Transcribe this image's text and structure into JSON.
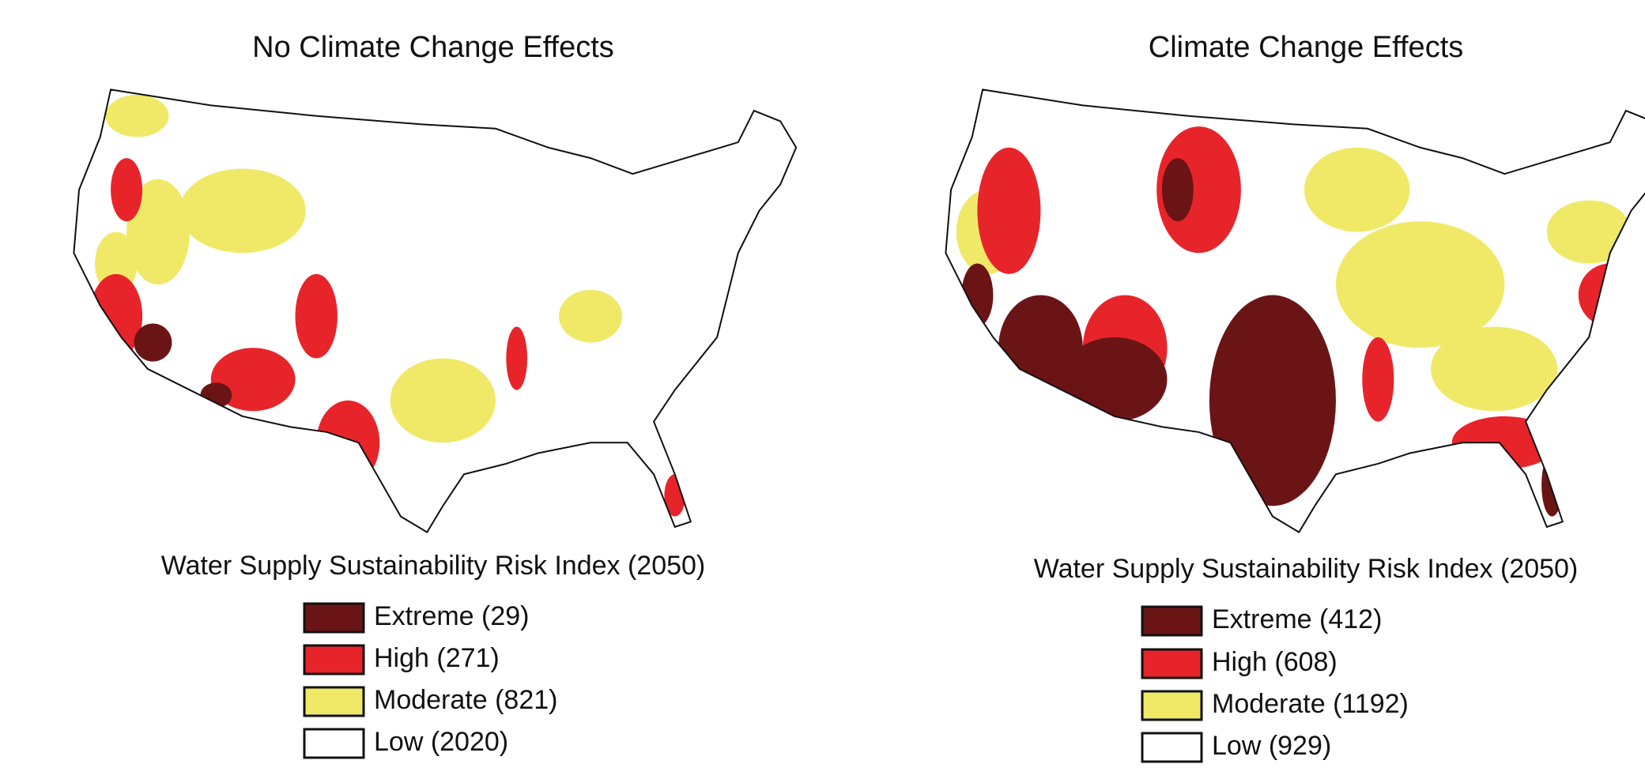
{
  "maps": [
    {
      "title": "No Climate Change Effects",
      "legend": {
        "title": "Water Supply Sustainability Risk Index (2050)",
        "items": [
          {
            "label": "Extreme (29)",
            "color": "#6b1416"
          },
          {
            "label": "High (271)",
            "color": "#e8242b"
          },
          {
            "label": "Moderate (821)",
            "color": "#f0e968"
          },
          {
            "label": "Low (2020)",
            "color": "#ffffff"
          }
        ]
      }
    },
    {
      "title": "Climate Change Effects",
      "legend": {
        "title": "Water Supply Sustainability Risk Index (2050)",
        "items": [
          {
            "label": "Extreme (412)",
            "color": "#6b1416"
          },
          {
            "label": "High (608)",
            "color": "#e8242b"
          },
          {
            "label": "Moderate (1192)",
            "color": "#f0e968"
          },
          {
            "label": "Low (929)",
            "color": "#ffffff"
          }
        ]
      }
    }
  ]
}
